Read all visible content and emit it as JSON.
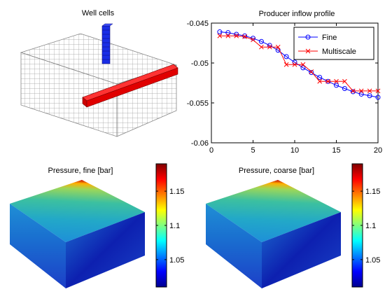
{
  "panels": {
    "well_cells": {
      "title": "Well cells"
    },
    "pressure_fine": {
      "title": "Pressure, fine [bar]"
    },
    "pressure_coarse": {
      "title": "Pressure, coarse [bar]"
    }
  },
  "colorbar": {
    "ticks": [
      1.05,
      1.1,
      1.15
    ],
    "tick_labels": [
      "1.05",
      "1.1",
      "1.15"
    ],
    "range": [
      1.01,
      1.19
    ],
    "colormap": "jet"
  },
  "colors": {
    "fine": "#0000ff",
    "multiscale": "#ff0000",
    "injector": "#0033cc",
    "producer": "#dd0000"
  },
  "chart_data": {
    "type": "line",
    "title": "Producer inflow profile",
    "xlabel": "",
    "ylabel": "",
    "xlim": [
      0,
      20
    ],
    "ylim": [
      -0.06,
      -0.045
    ],
    "x_ticks": [
      0,
      5,
      10,
      15,
      20
    ],
    "y_ticks": [
      -0.045,
      -0.05,
      -0.055,
      -0.06
    ],
    "y_tick_labels": [
      "-0.045",
      "-0.05",
      "-0.055",
      "-0.06"
    ],
    "legend_position": "top-right",
    "x": [
      1,
      2,
      3,
      4,
      5,
      6,
      7,
      8,
      9,
      10,
      11,
      12,
      13,
      14,
      15,
      16,
      17,
      18,
      19,
      20
    ],
    "series": [
      {
        "name": "Fine",
        "marker": "circle",
        "color": "#0000ff",
        "values": [
          -0.0461,
          -0.0462,
          -0.0464,
          -0.0466,
          -0.0469,
          -0.0473,
          -0.0478,
          -0.0484,
          -0.0492,
          -0.0499,
          -0.0506,
          -0.0512,
          -0.0518,
          -0.0523,
          -0.0528,
          -0.0532,
          -0.0536,
          -0.0539,
          -0.0541,
          -0.0543
        ]
      },
      {
        "name": "Multiscale",
        "marker": "x",
        "color": "#ff0000",
        "values": [
          -0.0466,
          -0.0466,
          -0.0466,
          -0.0467,
          -0.0471,
          -0.048,
          -0.048,
          -0.048,
          -0.0502,
          -0.0502,
          -0.0502,
          -0.0511,
          -0.0523,
          -0.0523,
          -0.0523,
          -0.0523,
          -0.0535,
          -0.0535,
          -0.0535,
          -0.0535
        ]
      }
    ]
  }
}
